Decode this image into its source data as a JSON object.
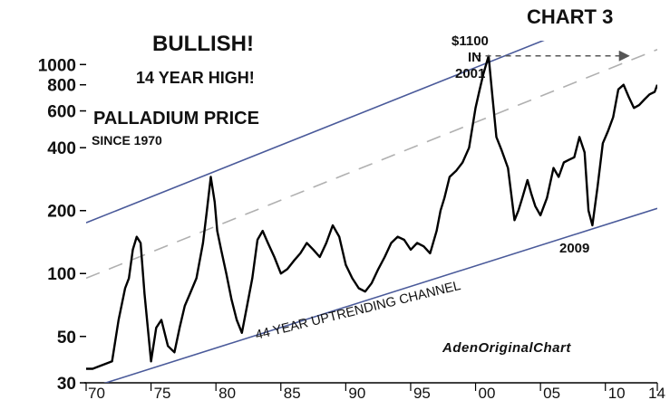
{
  "chart_data": {
    "type": "line",
    "title": "BULLISH!",
    "subtitle": "14 YEAR HIGH!",
    "chart_number": "CHART 3",
    "series_label": "PALLADIUM PRICE",
    "series_sublabel": "SINCE 1970",
    "credit": "AdenOriginalChart",
    "y_scale": "log",
    "ylim": [
      30,
      1300
    ],
    "xlim": [
      1970,
      2014
    ],
    "y_ticks": [
      {
        "value": 1000,
        "label": "1000"
      },
      {
        "value": 800,
        "label": "800"
      },
      {
        "value": 600,
        "label": "600"
      },
      {
        "value": 400,
        "label": "400"
      },
      {
        "value": 200,
        "label": "200"
      },
      {
        "value": 100,
        "label": "100"
      },
      {
        "value": 50,
        "label": "50"
      },
      {
        "value": 30,
        "label": "30"
      }
    ],
    "x_ticks": [
      {
        "value": 1970,
        "label": "70"
      },
      {
        "value": 1975,
        "label": "75"
      },
      {
        "value": 1980,
        "label": "80"
      },
      {
        "value": 1985,
        "label": "85"
      },
      {
        "value": 1990,
        "label": "90"
      },
      {
        "value": 1995,
        "label": "95"
      },
      {
        "value": 2000,
        "label": "00"
      },
      {
        "value": 2005,
        "label": "05"
      },
      {
        "value": 2010,
        "label": "10"
      },
      {
        "value": 2014,
        "label": "14"
      }
    ],
    "series": [
      {
        "x": [
          1970,
          1970.5,
          1971,
          1971.5,
          1972,
          1972.5,
          1973,
          1973.3,
          1973.6,
          1973.9,
          1974.2,
          1974.5,
          1975,
          1975.4,
          1975.8,
          1976.3,
          1976.8,
          1977.2,
          1977.6,
          1978,
          1978.5,
          1979,
          1979.3,
          1979.6,
          1979.9,
          1980.1,
          1980.4,
          1980.8,
          1981.2,
          1981.6,
          1982,
          1982.4,
          1982.8,
          1983.2,
          1983.6,
          1984,
          1984.5,
          1985,
          1985.5,
          1986,
          1986.5,
          1987,
          1987.5,
          1988,
          1988.5,
          1989,
          1989.5,
          1990,
          1990.5,
          1991,
          1991.5,
          1992,
          1992.5,
          1993,
          1993.5,
          1994,
          1994.5,
          1995,
          1995.5,
          1996,
          1996.5,
          1997,
          1997.3,
          1997.6,
          1998,
          1998.5,
          1999,
          1999.5,
          2000,
          2000.3,
          2000.6,
          2001,
          2001.3,
          2001.6,
          2002,
          2002.5,
          2003,
          2003.3,
          2003.6,
          2004,
          2004.3,
          2004.6,
          2005,
          2005.5,
          2006,
          2006.4,
          2006.8,
          2007.2,
          2007.6,
          2008,
          2008.4,
          2008.7,
          2009,
          2009.4,
          2009.8,
          2010.2,
          2010.6,
          2011,
          2011.4,
          2011.8,
          2012.2,
          2012.6,
          2013,
          2013.4,
          2013.8,
          2014
        ],
        "y": [
          35,
          35,
          36,
          37,
          38,
          60,
          85,
          95,
          130,
          150,
          140,
          80,
          38,
          55,
          60,
          45,
          42,
          55,
          70,
          80,
          95,
          140,
          200,
          290,
          220,
          160,
          130,
          100,
          75,
          60,
          52,
          70,
          95,
          145,
          160,
          140,
          120,
          100,
          105,
          115,
          125,
          140,
          130,
          120,
          140,
          170,
          150,
          110,
          95,
          85,
          82,
          90,
          105,
          120,
          140,
          150,
          145,
          130,
          140,
          135,
          125,
          160,
          200,
          230,
          290,
          310,
          340,
          400,
          620,
          750,
          900,
          1100,
          700,
          450,
          390,
          320,
          180,
          200,
          230,
          280,
          240,
          210,
          190,
          230,
          320,
          290,
          340,
          350,
          360,
          450,
          380,
          200,
          170,
          260,
          420,
          480,
          560,
          760,
          800,
          700,
          620,
          640,
          680,
          720,
          740,
          800
        ]
      }
    ],
    "annotations": [
      {
        "text": "$1100",
        "x": 2001
      },
      {
        "text": "IN",
        "x": 2001
      },
      {
        "text": "2001",
        "x": 2001
      },
      {
        "text": "2009",
        "x": 2009.5
      },
      {
        "text": "44 YEAR UPTRENDING CHANNEL",
        "x": 1990
      }
    ],
    "channel_upper": {
      "x": [
        1970,
        2014
      ],
      "y": [
        175,
        2150
      ]
    },
    "channel_lower": {
      "x": [
        1970,
        2014
      ],
      "y": [
        28,
        205
      ]
    },
    "channel_mid": {
      "x": [
        1970,
        2014
      ],
      "y": [
        95,
        1180
      ]
    },
    "grid": false,
    "colors": {
      "price": "#000000",
      "channel": "#4a5a9a",
      "midline": "#b0b0b0",
      "arrow": "#555555"
    }
  }
}
